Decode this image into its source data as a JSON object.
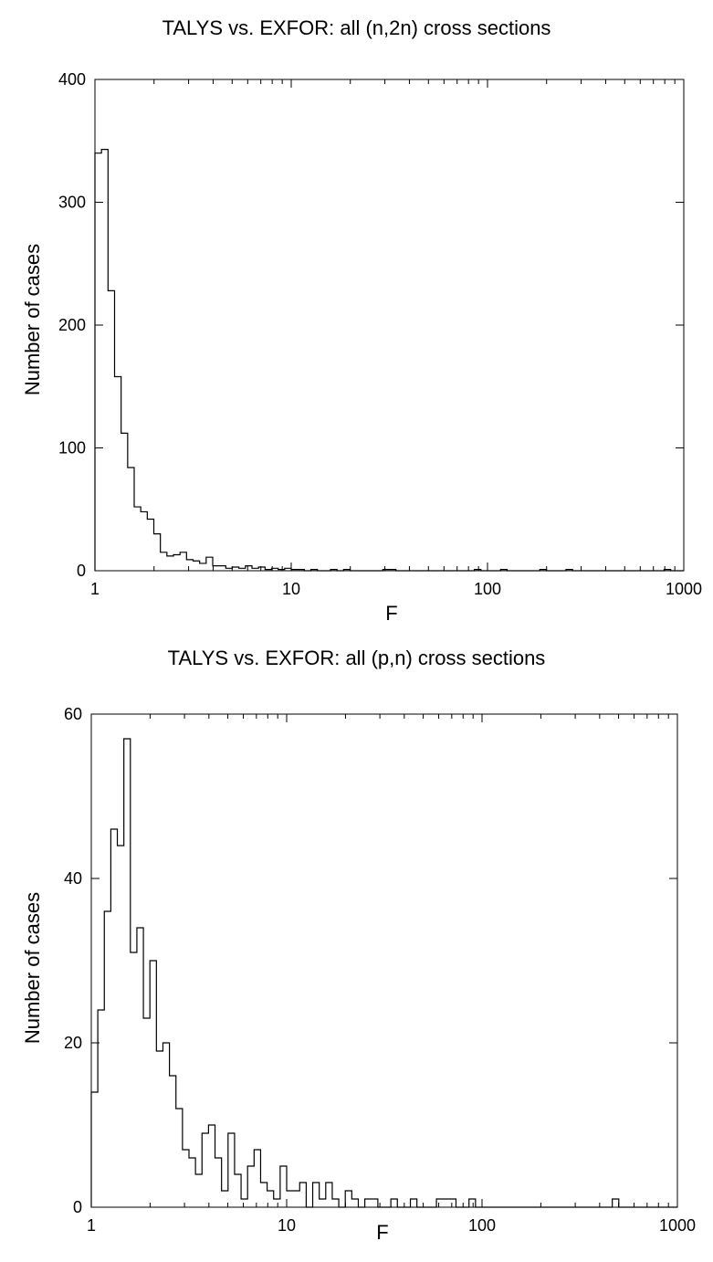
{
  "chart_data": [
    {
      "type": "histogram",
      "title": "TALYS vs. EXFOR: all (n,2n) cross sections",
      "xlabel": "F",
      "ylabel": "Number of cases",
      "xscale": "log",
      "xlim": [
        1,
        1000
      ],
      "ylim": [
        0,
        400
      ],
      "x_ticks": [
        "1",
        "10",
        "100",
        "1000"
      ],
      "y_ticks": [
        "0",
        "100",
        "200",
        "300",
        "400"
      ],
      "bin_edges_note": "log-spaced bins, 30 per decade",
      "values": [
        340,
        343,
        228,
        158,
        112,
        84,
        52,
        48,
        42,
        30,
        15,
        12,
        13,
        15,
        9,
        8,
        6,
        11,
        4,
        4,
        2,
        3,
        2,
        4,
        2,
        3,
        1,
        2,
        1,
        2,
        1,
        1,
        0,
        1,
        0,
        0,
        1,
        0,
        1,
        0,
        0,
        0,
        0,
        0,
        1,
        1,
        0,
        0,
        0,
        0,
        0,
        0,
        0,
        0,
        0,
        0,
        0,
        0,
        1,
        0,
        0,
        0,
        1,
        0,
        0,
        0,
        0,
        0,
        1,
        0,
        0,
        0,
        1,
        0,
        0,
        0,
        0,
        0,
        0,
        0,
        0,
        0,
        0,
        0,
        0,
        0,
        0,
        1,
        0,
        0
      ],
      "grid": false
    },
    {
      "type": "histogram",
      "title": "TALYS vs. EXFOR: all (p,n) cross sections",
      "xlabel": "F",
      "ylabel": "Number of cases",
      "xscale": "log",
      "xlim": [
        1,
        1000
      ],
      "ylim": [
        0,
        60
      ],
      "x_ticks": [
        "1",
        "10",
        "100",
        "1000"
      ],
      "y_ticks": [
        "0",
        "20",
        "40",
        "60"
      ],
      "bin_edges_note": "log-spaced bins, 30 per decade",
      "values": [
        14,
        24,
        36,
        46,
        44,
        57,
        31,
        34,
        23,
        30,
        19,
        20,
        16,
        12,
        7,
        6,
        4,
        9,
        10,
        6,
        2,
        9,
        4,
        1,
        5,
        7,
        3,
        2,
        1,
        5,
        2,
        2,
        3,
        0,
        3,
        1,
        3,
        1,
        0,
        2,
        1,
        0,
        1,
        1,
        0,
        0,
        1,
        0,
        0,
        1,
        0,
        0,
        0,
        1,
        1,
        1,
        0,
        0,
        1,
        0,
        0,
        0,
        0,
        0,
        0,
        0,
        0,
        0,
        0,
        0,
        0,
        0,
        0,
        0,
        0,
        0,
        0,
        0,
        0,
        0,
        1,
        0,
        0,
        0,
        0,
        0,
        0,
        0,
        0,
        0
      ],
      "grid": false
    }
  ]
}
